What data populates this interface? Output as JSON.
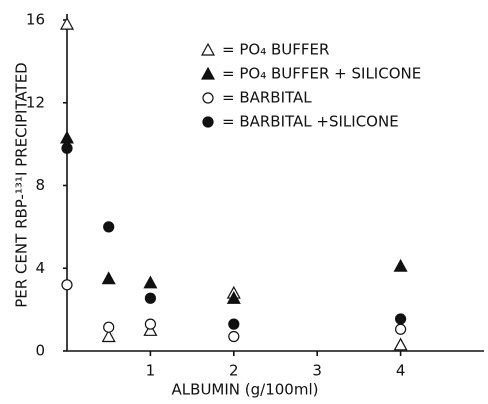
{
  "chart_data": {
    "type": "scatter",
    "xlabel": "ALBUMIN (g/100ml)",
    "ylabel": "PER CENT RBP-¹³¹I PRECIPITATED",
    "xlim": [
      0,
      5
    ],
    "ylim": [
      0,
      16
    ],
    "xticks": [
      1,
      2,
      3,
      4
    ],
    "yticks": [
      0,
      4,
      8,
      12,
      16
    ],
    "series": [
      {
        "name": "= PO₄ BUFFER",
        "color": "#111111",
        "marker": "triangle-open",
        "x": [
          0,
          0.5,
          1,
          2,
          4
        ],
        "values": [
          15.8,
          0.7,
          1.0,
          2.8,
          0.3
        ]
      },
      {
        "name": "= PO₄ BUFFER + SILICONE",
        "color": "#111111",
        "marker": "triangle-filled",
        "x": [
          0,
          0.5,
          1,
          2,
          4
        ],
        "values": [
          10.3,
          3.5,
          3.3,
          2.55,
          4.1
        ]
      },
      {
        "name": "= BARBITAL",
        "color": "#111111",
        "marker": "circle-open",
        "x": [
          0,
          0.5,
          1,
          2,
          4
        ],
        "values": [
          3.2,
          1.15,
          1.3,
          0.7,
          1.05
        ]
      },
      {
        "name": "= BARBITAL +SILICONE",
        "color": "#111111",
        "marker": "circle-filled",
        "x": [
          0,
          0.5,
          1,
          2,
          4
        ],
        "values": [
          9.8,
          6.0,
          2.55,
          1.3,
          1.55
        ]
      }
    ]
  }
}
